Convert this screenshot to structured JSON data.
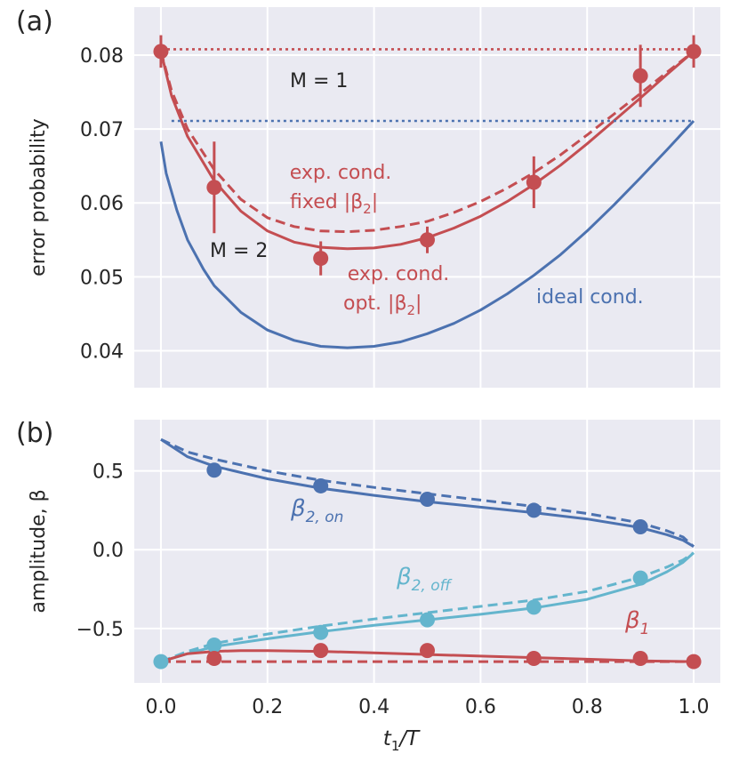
{
  "colors": {
    "red": "#c44e52",
    "blue": "#4c72b0",
    "cyan": "#64b5cd",
    "panel_bg": "#eaeaf2",
    "grid": "#ffffff",
    "text": "#262626"
  },
  "chart_data": [
    {
      "panel": "(a)",
      "type": "line",
      "ylabel": "error probability",
      "xlim": [
        -0.05,
        1.05
      ],
      "ylim": [
        0.035,
        0.0865
      ],
      "xticks": [
        0.0,
        0.2,
        0.4,
        0.6,
        0.8,
        1.0
      ],
      "yticks": [
        0.04,
        0.05,
        0.06,
        0.07,
        0.08
      ],
      "ytick_labels": [
        "0.04",
        "0.05",
        "0.06",
        "0.07",
        "0.08"
      ],
      "grid": true,
      "series": [
        {
          "role": "exp. cond. opt. |β2|",
          "style": "solid",
          "color": "red",
          "x": [
            0.0,
            0.02,
            0.05,
            0.1,
            0.15,
            0.2,
            0.25,
            0.3,
            0.35,
            0.4,
            0.45,
            0.5,
            0.55,
            0.6,
            0.65,
            0.7,
            0.75,
            0.8,
            0.85,
            0.9,
            0.95,
            1.0
          ],
          "y": [
            0.0805,
            0.0745,
            0.069,
            0.063,
            0.0589,
            0.0562,
            0.0547,
            0.054,
            0.0538,
            0.0539,
            0.0544,
            0.0553,
            0.0566,
            0.0582,
            0.0602,
            0.0625,
            0.0651,
            0.068,
            0.0711,
            0.0742,
            0.0774,
            0.0805
          ]
        },
        {
          "role": "exp. cond. fixed |β2|",
          "style": "dashed",
          "color": "red",
          "x": [
            0.0,
            0.02,
            0.05,
            0.1,
            0.15,
            0.2,
            0.25,
            0.3,
            0.35,
            0.4,
            0.45,
            0.5,
            0.55,
            0.6,
            0.65,
            0.7,
            0.75,
            0.8,
            0.85,
            0.9,
            0.95,
            1.0
          ],
          "y": [
            0.0805,
            0.0752,
            0.07,
            0.0645,
            0.0605,
            0.058,
            0.0568,
            0.0562,
            0.0561,
            0.0563,
            0.0568,
            0.0575,
            0.0587,
            0.0602,
            0.062,
            0.0641,
            0.0665,
            0.0692,
            0.072,
            0.0748,
            0.0777,
            0.0805
          ]
        },
        {
          "role": "ideal cond.",
          "style": "solid",
          "color": "blue",
          "x": [
            0.0,
            0.01,
            0.03,
            0.05,
            0.08,
            0.1,
            0.15,
            0.2,
            0.25,
            0.3,
            0.35,
            0.4,
            0.45,
            0.5,
            0.55,
            0.6,
            0.65,
            0.7,
            0.75,
            0.8,
            0.85,
            0.9,
            0.95,
            1.0
          ],
          "y": [
            0.0683,
            0.064,
            0.059,
            0.055,
            0.051,
            0.0488,
            0.0452,
            0.0428,
            0.0414,
            0.0406,
            0.0404,
            0.0406,
            0.0412,
            0.0423,
            0.0437,
            0.0455,
            0.0477,
            0.0502,
            0.053,
            0.0562,
            0.0597,
            0.0634,
            0.0672,
            0.0711
          ]
        },
        {
          "role": "M = 1 exp.",
          "style": "dotted",
          "color": "red",
          "x": [
            0.0,
            1.0
          ],
          "y": [
            0.0808,
            0.0808
          ]
        },
        {
          "role": "M = 1 ideal",
          "style": "dotted",
          "color": "blue",
          "x": [
            0.02,
            1.0
          ],
          "y": [
            0.0711,
            0.0711
          ]
        },
        {
          "role": "measured",
          "style": "markers",
          "color": "red",
          "x": [
            0.0,
            0.1,
            0.3,
            0.5,
            0.7,
            0.9,
            1.0
          ],
          "y": [
            0.0805,
            0.0621,
            0.0525,
            0.055,
            0.0628,
            0.0772,
            0.0805
          ],
          "yerr": [
            0.0022,
            0.0062,
            0.0023,
            0.0018,
            0.0035,
            0.0042,
            0.0022
          ]
        }
      ],
      "annotations": {
        "m1": "M = 1",
        "m2": "M = 2",
        "fixed_line1": "exp. cond.",
        "fixed_line2": "fixed |β",
        "opt_line1": "exp. cond.",
        "opt_line2": "opt. |β",
        "sub2": "2",
        "bar": "|",
        "ideal": "ideal cond."
      }
    },
    {
      "panel": "(b)",
      "type": "line",
      "ylabel": "amplitude, β",
      "xlabel": "t1/T",
      "xlim": [
        -0.05,
        1.05
      ],
      "ylim": [
        -0.845,
        0.825
      ],
      "xticks": [
        0.0,
        0.2,
        0.4,
        0.6,
        0.8,
        1.0
      ],
      "xtick_labels": [
        "0.0",
        "0.2",
        "0.4",
        "0.6",
        "0.8",
        "1.0"
      ],
      "yticks": [
        -0.5,
        0.0,
        0.5
      ],
      "ytick_labels": [
        "−0.5",
        "0.0",
        "0.5"
      ],
      "grid": true,
      "series": [
        {
          "role": "β2,on solid",
          "style": "solid",
          "color": "blue",
          "x": [
            0.0,
            0.05,
            0.1,
            0.2,
            0.3,
            0.4,
            0.5,
            0.6,
            0.7,
            0.8,
            0.9,
            0.95,
            0.98,
            1.0
          ],
          "y": [
            0.7,
            0.59,
            0.53,
            0.45,
            0.39,
            0.345,
            0.305,
            0.27,
            0.235,
            0.195,
            0.14,
            0.095,
            0.06,
            0.02
          ]
        },
        {
          "role": "β2,on dashed",
          "style": "dashed",
          "color": "blue",
          "x": [
            0.0,
            0.05,
            0.1,
            0.2,
            0.3,
            0.4,
            0.5,
            0.6,
            0.7,
            0.8,
            0.9,
            0.95,
            0.98,
            1.0
          ],
          "y": [
            0.7,
            0.62,
            0.575,
            0.5,
            0.44,
            0.395,
            0.355,
            0.315,
            0.275,
            0.23,
            0.17,
            0.12,
            0.08,
            0.02
          ]
        },
        {
          "role": "β2,off solid",
          "style": "solid",
          "color": "cyan",
          "x": [
            0.0,
            0.05,
            0.1,
            0.2,
            0.3,
            0.4,
            0.5,
            0.6,
            0.7,
            0.8,
            0.9,
            0.95,
            0.98,
            1.0
          ],
          "y": [
            -0.71,
            -0.66,
            -0.615,
            -0.565,
            -0.52,
            -0.48,
            -0.445,
            -0.41,
            -0.37,
            -0.315,
            -0.22,
            -0.14,
            -0.08,
            -0.02
          ]
        },
        {
          "role": "β2,off dashed",
          "style": "dashed",
          "color": "cyan",
          "x": [
            0.0,
            0.05,
            0.1,
            0.2,
            0.3,
            0.4,
            0.5,
            0.6,
            0.7,
            0.8,
            0.9,
            0.95,
            0.98,
            1.0
          ],
          "y": [
            -0.71,
            -0.645,
            -0.595,
            -0.535,
            -0.485,
            -0.44,
            -0.4,
            -0.36,
            -0.32,
            -0.265,
            -0.175,
            -0.11,
            -0.065,
            -0.02
          ]
        },
        {
          "role": "β1 solid",
          "style": "solid",
          "color": "red",
          "x": [
            0.0,
            0.05,
            0.1,
            0.15,
            0.2,
            0.3,
            0.4,
            0.5,
            0.6,
            0.7,
            0.8,
            0.9,
            1.0
          ],
          "y": [
            -0.71,
            -0.66,
            -0.645,
            -0.64,
            -0.64,
            -0.645,
            -0.655,
            -0.665,
            -0.675,
            -0.685,
            -0.695,
            -0.705,
            -0.71
          ]
        },
        {
          "role": "β1 dashed",
          "style": "dashed",
          "color": "red",
          "x": [
            0.0,
            1.0
          ],
          "y": [
            -0.71,
            -0.71
          ]
        },
        {
          "role": "β2,on points",
          "style": "markers",
          "color": "blue",
          "x": [
            0.1,
            0.3,
            0.5,
            0.7,
            0.9
          ],
          "y": [
            0.505,
            0.405,
            0.32,
            0.25,
            0.145
          ]
        },
        {
          "role": "β2,off points",
          "style": "markers",
          "color": "cyan",
          "x": [
            0.0,
            0.1,
            0.3,
            0.5,
            0.7,
            0.9
          ],
          "y": [
            -0.71,
            -0.605,
            -0.525,
            -0.445,
            -0.365,
            -0.18
          ]
        },
        {
          "role": "β1 points",
          "style": "markers",
          "color": "red",
          "x": [
            0.1,
            0.3,
            0.5,
            0.7,
            0.9,
            1.0
          ],
          "y": [
            -0.69,
            -0.64,
            -0.64,
            -0.69,
            -0.69,
            -0.71
          ]
        }
      ],
      "annotations": {
        "beta": "β",
        "on_sub": "2, on",
        "off_sub": "2, off",
        "one_sub": "1"
      },
      "xlabel_t": "t",
      "xlabel_sub": "1",
      "xlabel_rest": "/T"
    }
  ]
}
